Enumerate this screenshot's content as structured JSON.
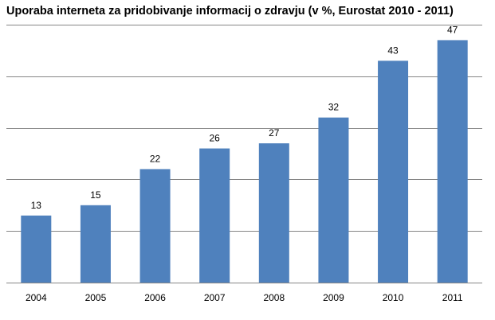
{
  "chart_data": {
    "type": "bar",
    "title": "Uporaba interneta za pridobivanje informacij o zdravju (v %, Eurostat 2010 - 2011)",
    "categories": [
      "2004",
      "2005",
      "2006",
      "2007",
      "2008",
      "2009",
      "2010",
      "2011"
    ],
    "values": [
      13,
      15,
      22,
      26,
      27,
      32,
      43,
      47
    ],
    "xlabel": "",
    "ylabel": "",
    "ylim": [
      0,
      50
    ],
    "grid": true,
    "legend": "none",
    "bar_color": "#4F81BD",
    "grid_color": "#868686"
  }
}
